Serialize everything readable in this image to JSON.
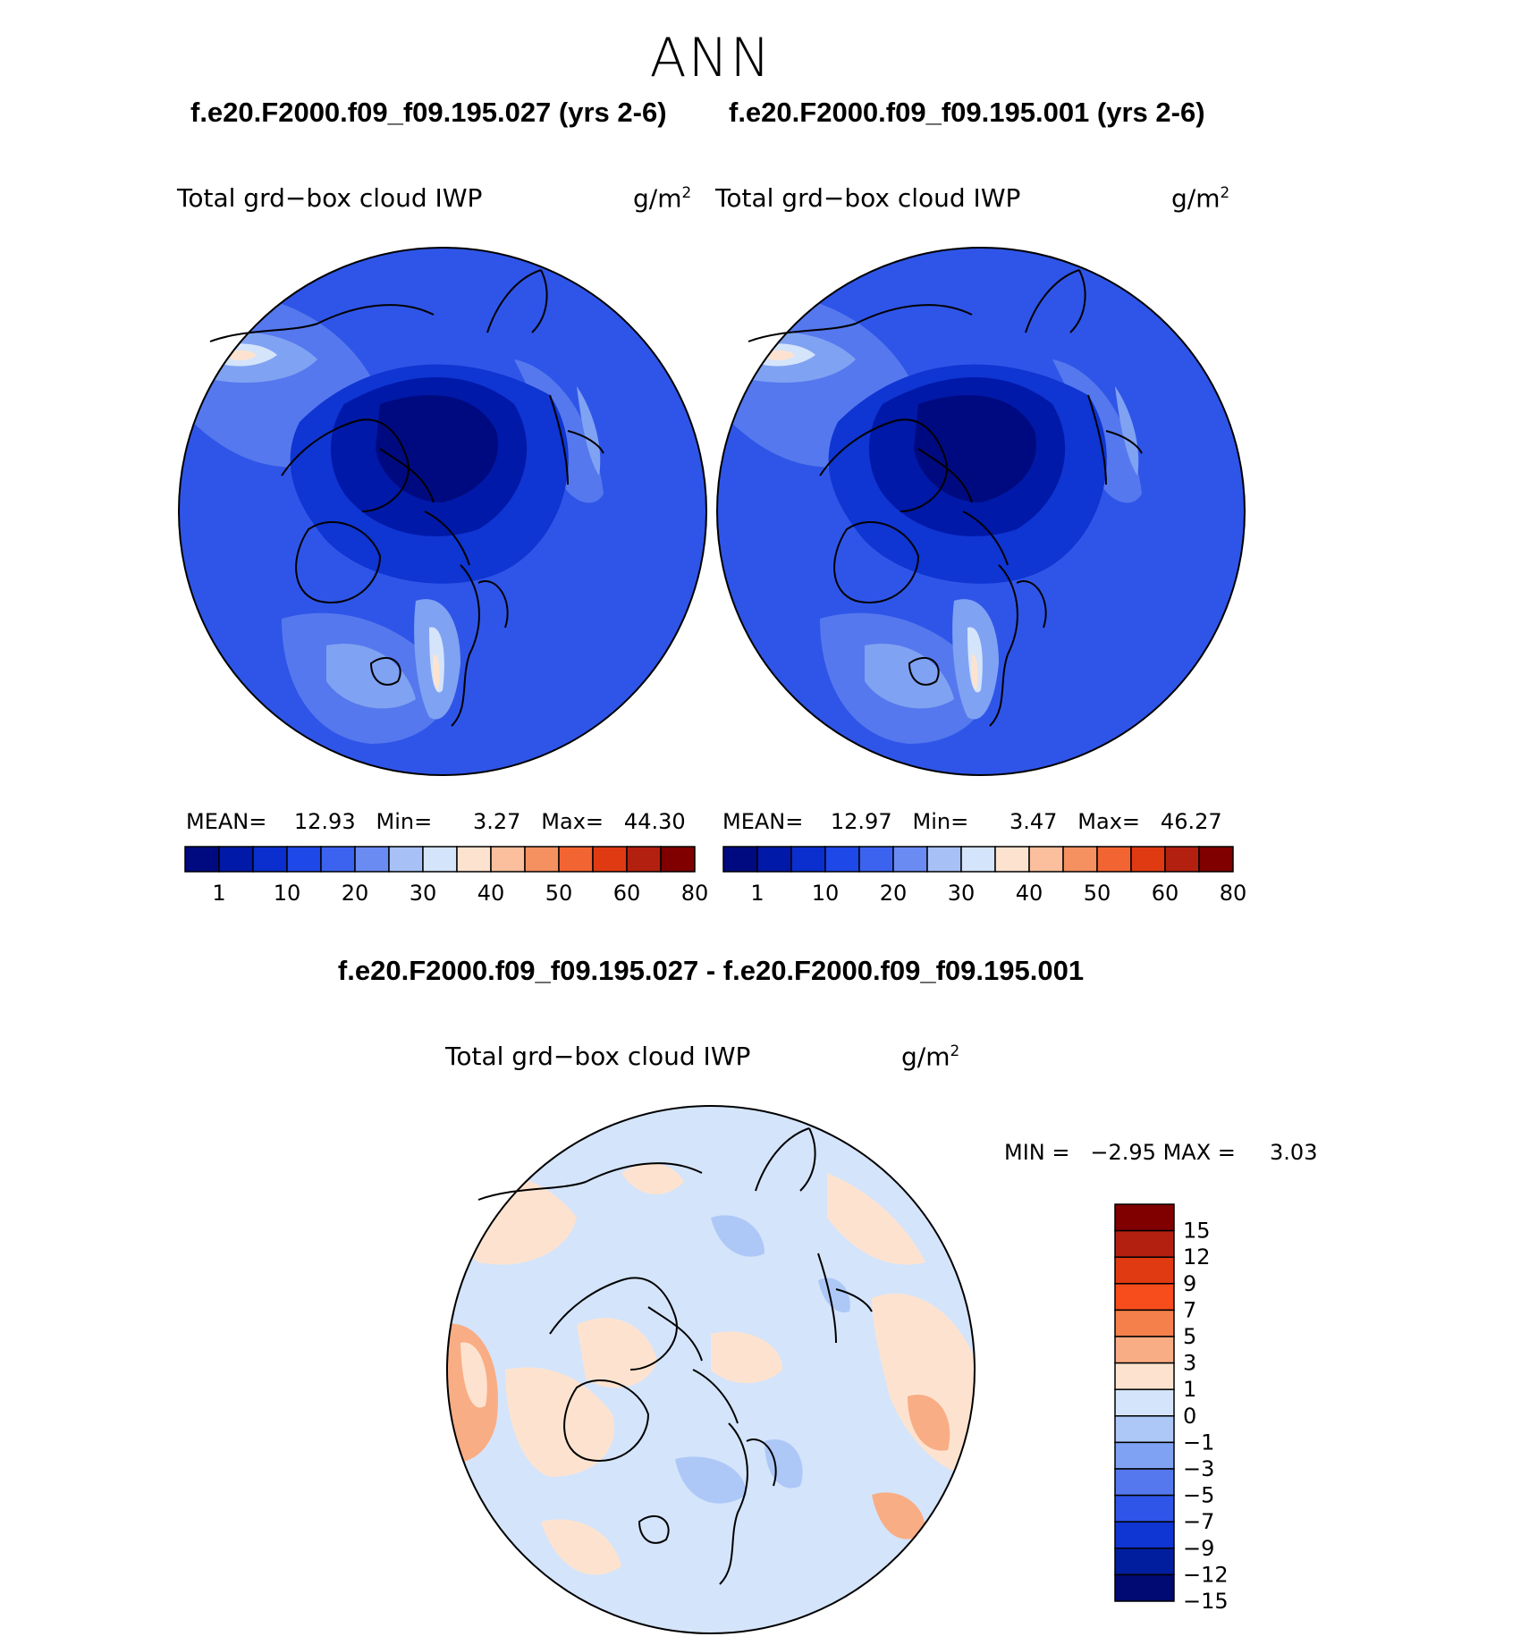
{
  "season": "ANN",
  "panels": [
    {
      "case_title": "f.e20.F2000.f09_f09.195.027 (yrs 2-6)",
      "variable": "Total grd−box cloud IWP",
      "units": "g/m",
      "units_exp": "2",
      "mean_label": "MEAN=",
      "mean": "12.93",
      "min_label": "Min=",
      "min": "3.27",
      "max_label": "Max=",
      "max": "44.30"
    },
    {
      "case_title": "f.e20.F2000.f09_f09.195.001 (yrs 2-6)",
      "variable": "Total grd−box cloud IWP",
      "units": "g/m",
      "units_exp": "2",
      "mean_label": "MEAN=",
      "mean": "12.97",
      "min_label": "Min=",
      "min": "3.47",
      "max_label": "Max=",
      "max": "46.27"
    }
  ],
  "diff": {
    "title": "f.e20.F2000.f09_f09.195.027 - f.e20.F2000.f09_f09.195.001",
    "variable": "Total grd−box cloud IWP",
    "units": "g/m",
    "units_exp": "2",
    "min_label": "MIN =",
    "min": "−2.95",
    "max_label": "MAX =",
    "max": "3.03"
  },
  "colorbar_main": {
    "colors": [
      "#000a80",
      "#0019a8",
      "#0a2fce",
      "#1f48e8",
      "#3b63f0",
      "#6a8cf2",
      "#a7c1f7",
      "#d4e4fb",
      "#fde3cf",
      "#fbbf9d",
      "#f59060",
      "#f26432",
      "#e03a13",
      "#b32010",
      "#800000"
    ],
    "labels": [
      "1",
      "10",
      "20",
      "30",
      "40",
      "50",
      "60",
      "80"
    ]
  },
  "colorbar_diff": {
    "colors": [
      "#800000",
      "#b32010",
      "#e03a13",
      "#f74c1c",
      "#f5804c",
      "#f9ad85",
      "#fde3cf",
      "#d4e4fb",
      "#adc8f7",
      "#80a2f2",
      "#5578ee",
      "#2f55e8",
      "#0f35d2",
      "#001e9e",
      "#000a72"
    ],
    "labels": [
      "15",
      "12",
      "9",
      "7",
      "5",
      "3",
      "1",
      "0",
      "−1",
      "−3",
      "−5",
      "−7",
      "−9",
      "−12",
      "−15"
    ]
  }
}
